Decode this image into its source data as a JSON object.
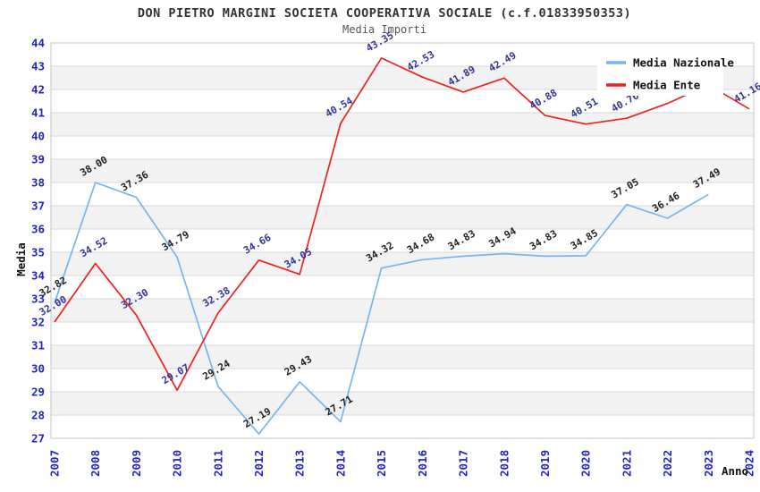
{
  "title": "DON PIETRO MARGINI SOCIETA COOPERATIVA SOCIALE (c.f.01833950353)",
  "subtitle": "Media Importi",
  "axes": {
    "y_title": "Media",
    "x_title": "Anno"
  },
  "legend": {
    "position": "top-right",
    "entries": [
      {
        "label": "Media Nazionale",
        "color": "#7ab4ec"
      },
      {
        "label": "Media Ente",
        "color": "#ee2222"
      }
    ]
  },
  "colors": {
    "tick_label": "#2222cc",
    "grid_line": "#d8d8d8",
    "band_fill": "#f2f2f2",
    "plot_border": "#c4c4c4",
    "blue_series": "#7ab4ec",
    "red_series": "#ee2222",
    "blue_series_label": "#222222",
    "red_series_label": "#333399",
    "axis_title": "#111111"
  },
  "chart_data": {
    "type": "line",
    "title": "DON PIETRO MARGINI SOCIETA COOPERATIVA SOCIALE (c.f.01833950353)",
    "subtitle": "Media Importi",
    "xlabel": "Anno",
    "ylabel": "Media",
    "x": [
      2007,
      2008,
      2009,
      2010,
      2011,
      2012,
      2013,
      2014,
      2015,
      2016,
      2017,
      2018,
      2019,
      2020,
      2021,
      2022,
      2023,
      2024
    ],
    "ylim": [
      27,
      44
    ],
    "y_tick_step": 1,
    "grid": "horizontal-only, alternating shaded bands per 1 unit",
    "legend_position": "top-right, white box overlapping plot",
    "series": [
      {
        "name": "Media Nazionale",
        "color": "#7ab4ec",
        "label_color": "#222222",
        "values": [
          32.82,
          38.0,
          37.36,
          34.79,
          29.24,
          27.19,
          29.43,
          27.71,
          34.32,
          34.68,
          34.83,
          34.94,
          34.83,
          34.85,
          37.05,
          36.46,
          37.49,
          null
        ]
      },
      {
        "name": "Media Ente",
        "color": "#ee2222",
        "label_color": "#333399",
        "values": [
          32.0,
          34.52,
          32.3,
          29.07,
          32.38,
          34.66,
          34.05,
          40.54,
          43.35,
          42.53,
          41.89,
          42.49,
          40.88,
          40.51,
          40.76,
          41.4,
          42.2,
          41.16
        ],
        "note_labels_occluded_by_legend": [
          2022,
          2023
        ]
      }
    ]
  }
}
